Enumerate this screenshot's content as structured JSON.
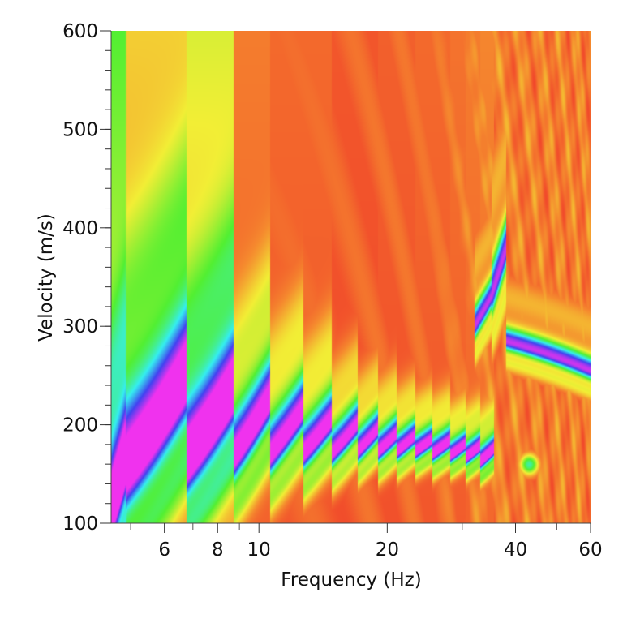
{
  "chart_data": {
    "type": "heatmap",
    "title": "",
    "xlabel": "Frequency (Hz)",
    "ylabel": "Velocity (m/s)",
    "xscale": "log",
    "xlim": [
      4.5,
      60
    ],
    "ylim": [
      100,
      600
    ],
    "x_ticks": [
      6,
      8,
      10,
      20,
      40,
      60
    ],
    "x_tick_labels": [
      "6",
      "8",
      "10",
      "20",
      "40",
      "60"
    ],
    "x_minor_ticks": [
      5,
      7,
      9,
      30,
      50
    ],
    "y_ticks": [
      100,
      200,
      300,
      400,
      500,
      600
    ],
    "y_tick_labels": [
      "100",
      "200",
      "300",
      "400",
      "500",
      "600"
    ],
    "y_minor_step": 20,
    "grid": false,
    "legend": "none",
    "colormap": [
      "#f03a2a",
      "#f5892e",
      "#f2ee35",
      "#52ef32",
      "#35eef0",
      "#4242f0",
      "#f032ee"
    ],
    "ridge_segments": [
      {
        "f": [
          4.5,
          4.85
        ],
        "v": [
          110,
          160
        ],
        "width": 30,
        "bg": 0.5
      },
      {
        "f": [
          4.85,
          6.75
        ],
        "v": [
          150,
          245
        ],
        "width": 38,
        "bg": 0.28
      },
      {
        "f": [
          6.75,
          8.7
        ],
        "v": [
          160,
          232
        ],
        "width": 30,
        "bg": 0.36
      },
      {
        "f": [
          8.7,
          10.6
        ],
        "v": [
          165,
          225
        ],
        "width": 24,
        "bg": 0.14
      },
      {
        "f": [
          10.6,
          12.7
        ],
        "v": [
          168,
          215
        ],
        "width": 20,
        "bg": 0.1
      },
      {
        "f": [
          12.7,
          14.8
        ],
        "v": [
          170,
          205
        ],
        "width": 17,
        "bg": 0.1
      },
      {
        "f": [
          14.8,
          17
        ],
        "v": [
          170,
          200
        ],
        "width": 14,
        "bg": 0.06
      },
      {
        "f": [
          17,
          19
        ],
        "v": [
          172,
          195
        ],
        "width": 12,
        "bg": 0.06
      },
      {
        "f": [
          19,
          21
        ],
        "v": [
          172,
          190
        ],
        "width": 11,
        "bg": 0.08
      },
      {
        "f": [
          21,
          23.2
        ],
        "v": [
          172,
          188
        ],
        "width": 10,
        "bg": 0.08
      },
      {
        "f": [
          23.2,
          25.5
        ],
        "v": [
          172,
          185
        ],
        "width": 9,
        "bg": 0.1
      },
      {
        "f": [
          25.5,
          28
        ],
        "v": [
          170,
          183
        ],
        "width": 9,
        "bg": 0.1
      },
      {
        "f": [
          28,
          30.5
        ],
        "v": [
          168,
          180
        ],
        "width": 8,
        "bg": 0.12
      },
      {
        "f": [
          30.5,
          33
        ],
        "v": [
          166,
          178
        ],
        "width": 8,
        "bg": 0.14
      },
      {
        "f": [
          33,
          35.5
        ],
        "v": [
          162,
          175
        ],
        "width": 8,
        "bg": 0.16
      }
    ],
    "higher_mode": [
      {
        "f": [
          32,
          35
        ],
        "v": [
          300,
          330
        ],
        "width": 14
      },
      {
        "f": [
          35,
          38
        ],
        "v": [
          330,
          380
        ],
        "width": 22
      },
      {
        "f": [
          38,
          60
        ],
        "v": [
          285,
          255
        ],
        "width": 10
      }
    ],
    "blobs": [
      {
        "f": 43,
        "v": 160,
        "value": 0.6
      }
    ]
  }
}
